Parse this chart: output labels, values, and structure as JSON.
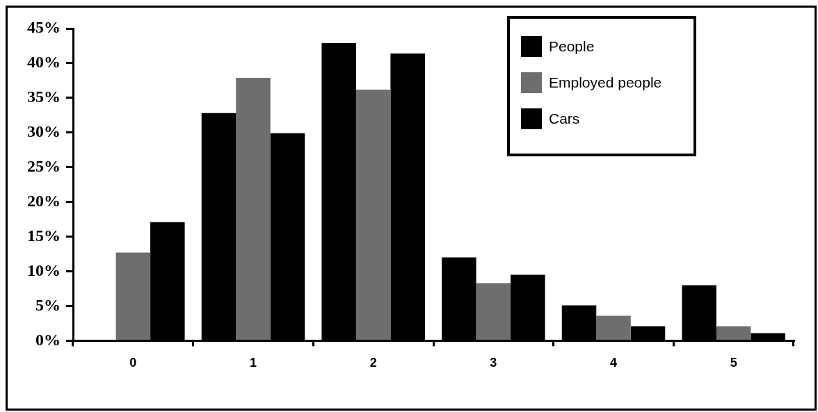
{
  "chart_data": {
    "type": "bar",
    "categories": [
      "0",
      "1",
      "2",
      "3",
      "4",
      "5"
    ],
    "series": [
      {
        "name": "People",
        "color": "#000000",
        "values": [
          0,
          32.8,
          42.9,
          12.0,
          5.1,
          8.0
        ]
      },
      {
        "name": "Employed people",
        "color": "#6e6e6e",
        "values": [
          12.7,
          37.9,
          36.2,
          8.3,
          3.6,
          2.1
        ]
      },
      {
        "name": "Cars",
        "color": "#000000",
        "values": [
          17.1,
          29.9,
          41.4,
          9.5,
          2.1,
          1.1
        ]
      }
    ],
    "ylim": [
      0,
      45
    ],
    "yticks": [
      {
        "value": 0,
        "label": "0%"
      },
      {
        "value": 5,
        "label": "5%"
      },
      {
        "value": 10,
        "label": "10%"
      },
      {
        "value": 15,
        "label": "15%"
      },
      {
        "value": 20,
        "label": "20%"
      },
      {
        "value": 25,
        "label": "25%"
      },
      {
        "value": 30,
        "label": "30%"
      },
      {
        "value": 35,
        "label": "35%"
      },
      {
        "value": 40,
        "label": "40%"
      },
      {
        "value": 45,
        "label": "45%"
      }
    ],
    "grid": false,
    "legend": "top right"
  }
}
